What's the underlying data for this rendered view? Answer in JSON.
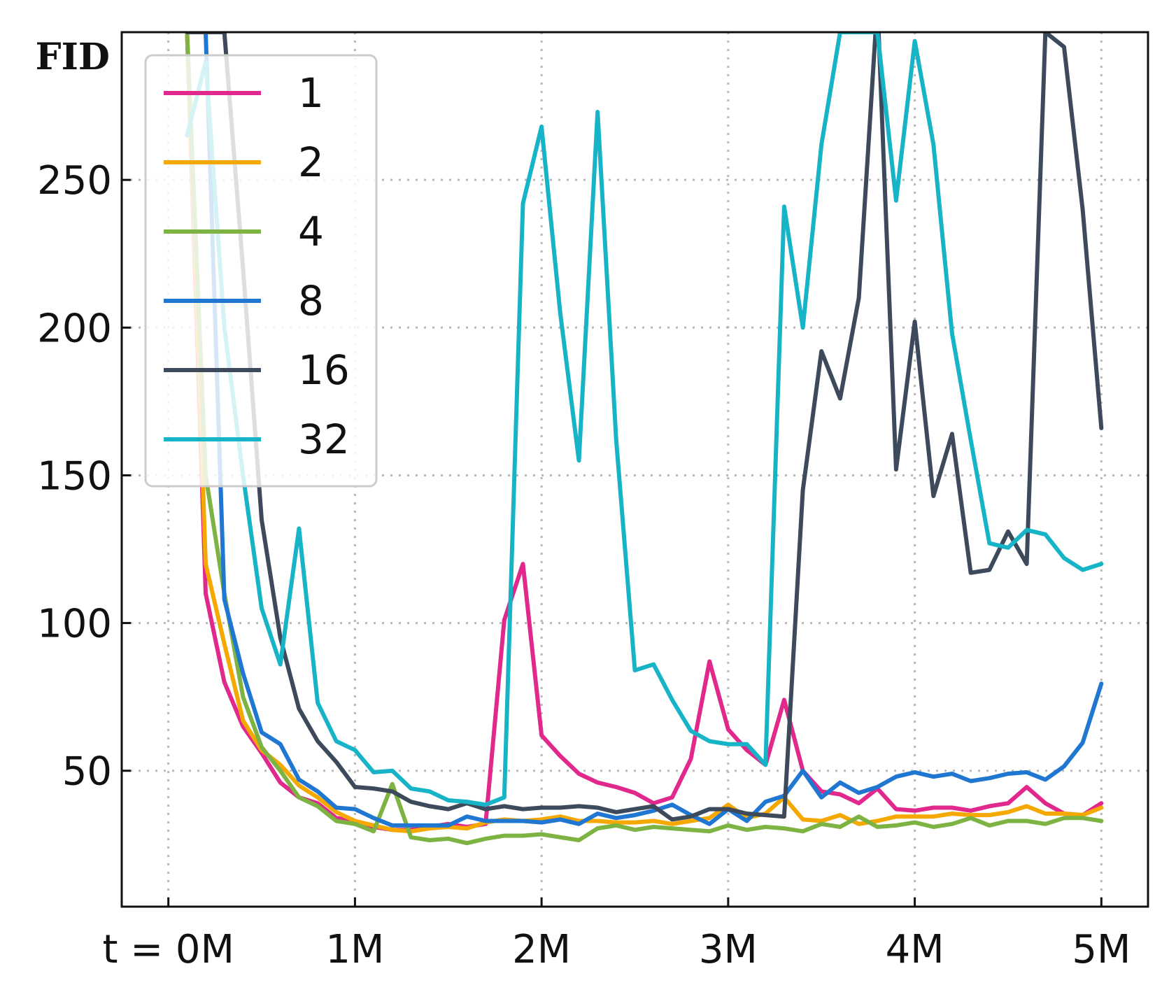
{
  "chart_data": {
    "type": "line",
    "ylabel": "FID",
    "xlabel": "",
    "x_tick_labels": [
      "t = 0M",
      "1M",
      "2M",
      "3M",
      "4M",
      "5M"
    ],
    "x_ticks": [
      0,
      1,
      2,
      3,
      4,
      5
    ],
    "y_ticks": [
      50,
      100,
      150,
      200,
      250
    ],
    "y_tick_labels": [
      "50",
      "100",
      "150",
      "200",
      "250"
    ],
    "xlim": [
      -0.25,
      5.25
    ],
    "ylim": [
      4,
      300
    ],
    "grid": true,
    "legend_position": "upper-left",
    "x": [
      0.1,
      0.2,
      0.3,
      0.4,
      0.5,
      0.6,
      0.7,
      0.8,
      0.9,
      1.0,
      1.1,
      1.2,
      1.3,
      1.4,
      1.5,
      1.6,
      1.7,
      1.8,
      1.9,
      2.0,
      2.1,
      2.2,
      2.3,
      2.4,
      2.5,
      2.6,
      2.7,
      2.8,
      2.9,
      3.0,
      3.1,
      3.2,
      3.3,
      3.4,
      3.5,
      3.6,
      3.7,
      3.8,
      3.9,
      4.0,
      4.1,
      4.2,
      4.3,
      4.4,
      4.5,
      4.6,
      4.7,
      4.8,
      4.9,
      5.0
    ],
    "series": [
      {
        "name": "1",
        "color": "#e1288c",
        "values": [
          300,
          110,
          80,
          65,
          56,
          46,
          41,
          39,
          34,
          33,
          31,
          30,
          30,
          31,
          32,
          31,
          32,
          101,
          120,
          62,
          55,
          49,
          46,
          44.5,
          42.5,
          39,
          41,
          54,
          87,
          64,
          57,
          52,
          74,
          50,
          43,
          42,
          39,
          44,
          37,
          36.5,
          37.5,
          37.5,
          36.5,
          38,
          39,
          44.5,
          39,
          35.5,
          35,
          39
        ]
      },
      {
        "name": "2",
        "color": "#f5a800",
        "values": [
          300,
          120,
          93,
          67,
          57,
          52,
          45,
          41,
          36,
          33,
          31.5,
          30,
          29.5,
          30.5,
          31,
          30.5,
          32.5,
          33.5,
          33,
          33.5,
          34.5,
          33,
          33,
          32.5,
          32.5,
          33,
          32,
          33,
          34,
          38.5,
          34,
          35.5,
          41,
          33.5,
          33,
          35,
          32,
          33,
          34.5,
          34.5,
          34.5,
          35.5,
          35,
          35,
          36,
          38,
          35.5,
          35.5,
          35,
          37.5
        ]
      },
      {
        "name": "4",
        "color": "#7cb342",
        "values": [
          300,
          150,
          110,
          75,
          58,
          50,
          41,
          38,
          33,
          32,
          29.5,
          45.5,
          27.5,
          26.5,
          27,
          25.5,
          27,
          28,
          28,
          28.5,
          27.5,
          26.5,
          30.5,
          31.5,
          30,
          31,
          30.5,
          30,
          29.5,
          31.5,
          30,
          31,
          30.5,
          29.5,
          32,
          31,
          34.5,
          31,
          31.5,
          32.5,
          31,
          32,
          34,
          31.5,
          33,
          33,
          32,
          34,
          34,
          33
        ]
      },
      {
        "name": "8",
        "color": "#1f77d2",
        "values": [
          300,
          300,
          108,
          83,
          63,
          59,
          47,
          43,
          37.5,
          37,
          34,
          31.5,
          31.5,
          31.5,
          31.5,
          34.5,
          33,
          33,
          33,
          32.5,
          33.5,
          32,
          35.5,
          34,
          35,
          36.5,
          38.5,
          35,
          32,
          37,
          33,
          39.5,
          41.5,
          50,
          41,
          46,
          42.5,
          44.5,
          48,
          49.5,
          48,
          49,
          46.5,
          47.5,
          49,
          49.5,
          47,
          51.5,
          59.5,
          79.5
        ]
      },
      {
        "name": "16",
        "color": "#3d4a5c",
        "values": [
          300,
          300,
          300,
          220,
          135,
          95,
          71,
          60,
          53,
          44.5,
          44,
          43,
          39.5,
          38,
          37,
          39,
          37,
          38,
          37,
          37.5,
          37.5,
          38,
          37.5,
          36,
          37,
          38,
          33.5,
          34.5,
          37,
          37,
          35.5,
          35,
          34.5,
          145,
          192,
          176,
          210,
          310,
          152,
          202,
          143,
          164,
          117,
          118,
          131,
          120,
          300,
          295,
          240,
          166
        ]
      },
      {
        "name": "32",
        "color": "#17b4c8",
        "values": [
          265,
          290,
          200,
          150,
          105,
          86,
          132,
          73,
          60,
          57,
          49.5,
          50,
          44,
          43,
          40,
          39.5,
          38.5,
          41,
          242,
          268,
          205,
          155,
          273,
          162,
          84,
          86,
          74,
          63.5,
          60,
          59,
          59,
          52,
          241,
          200,
          262,
          300,
          300,
          300,
          243,
          297,
          262,
          198,
          162,
          127,
          125.5,
          131.5,
          130,
          122,
          118,
          120
        ]
      }
    ]
  }
}
